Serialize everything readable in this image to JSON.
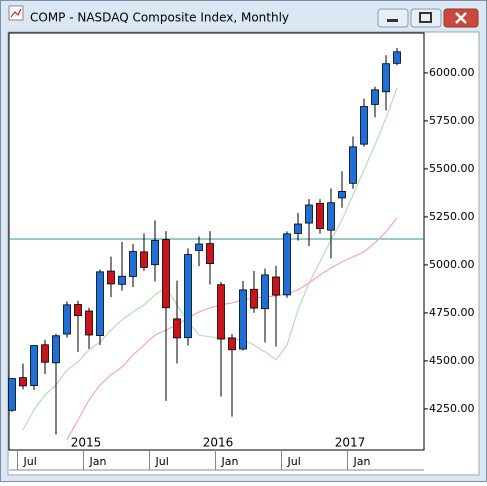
{
  "chart_data": {
    "type": "candlestick",
    "title": "COMP - NASDAQ Composite Index, Monthly",
    "categories": [
      null,
      "Jul",
      null,
      null,
      null,
      null,
      null,
      "Jan",
      null,
      null,
      null,
      null,
      null,
      "Jul",
      null,
      null,
      null,
      null,
      null,
      "Jan",
      null,
      null,
      null,
      null,
      null,
      "Jul",
      null,
      null,
      null,
      null,
      null,
      "Jan",
      null,
      null,
      null,
      null
    ],
    "years": [
      null,
      null,
      null,
      null,
      null,
      null,
      null,
      "2015",
      null,
      null,
      null,
      null,
      null,
      null,
      null,
      null,
      null,
      null,
      null,
      "2016",
      null,
      null,
      null,
      null,
      null,
      null,
      null,
      null,
      null,
      null,
      null,
      "2017",
      null,
      null,
      null,
      null
    ],
    "open": [
      4243,
      4413,
      4372,
      4584,
      4490,
      4640,
      4794,
      4760,
      4632,
      4968,
      4899,
      4940,
      5068,
      5001,
      5132,
      4719,
      4621,
      5075,
      5111,
      4897,
      4620,
      4562,
      4873,
      4772,
      4937,
      4844,
      5164,
      5218,
      5321,
      5181,
      5349,
      5425,
      5629,
      5836,
      5902,
      6050
    ],
    "high": [
      4409,
      4486,
      4580,
      4610,
      4641,
      4810,
      4814,
      4777,
      4976,
      5043,
      5120,
      5109,
      5164,
      5232,
      5176,
      4918,
      5087,
      5148,
      5176,
      4911,
      4640,
      4916,
      4969,
      4981,
      4995,
      5175,
      5271,
      5343,
      5342,
      5399,
      5487,
      5669,
      5867,
      5928,
      6092,
      6130
    ],
    "low": [
      4235,
      4352,
      4348,
      4432,
      4117,
      4621,
      4547,
      4563,
      4583,
      4832,
      4867,
      4885,
      4969,
      4914,
      4292,
      4487,
      4580,
      4994,
      4899,
      4314,
      4210,
      4554,
      4751,
      4596,
      4575,
      4829,
      5127,
      5098,
      5163,
      5034,
      5298,
      5397,
      5616,
      5769,
      5805,
      6040
    ],
    "close": [
      4408,
      4370,
      4580,
      4493,
      4631,
      4792,
      4736,
      4635,
      4964,
      4901,
      4941,
      5070,
      4987,
      5128,
      4777,
      4620,
      5054,
      5109,
      5007,
      4614,
      4558,
      4870,
      4775,
      4948,
      4843,
      5162,
      5213,
      5312,
      5189,
      5324,
      5383,
      5615,
      5825,
      5912,
      6048,
      6110
    ],
    "up_color": "#1f6fd6",
    "down_color": "#c8141c",
    "overlays": [
      {
        "color": "#b9ddb9",
        "values": [
          null,
          4141,
          4245,
          4323,
          4375,
          4453,
          4495,
          4557,
          4599,
          4661,
          4714,
          4755,
          4792,
          4844,
          4880,
          4792,
          4703,
          4635,
          4625,
          4620,
          4615,
          4609,
          4583,
          4547,
          4505,
          4583,
          4766,
          4906,
          5016,
          5130,
          5234,
          5365,
          5495,
          5625,
          5766,
          5922
        ]
      },
      {
        "color": "#f4a6c0",
        "values": [
          null,
          null,
          null,
          null,
          null,
          4089,
          4193,
          4297,
          4375,
          4427,
          4469,
          4531,
          4583,
          4635,
          4661,
          4688,
          4724,
          4755,
          4776,
          4792,
          4802,
          4818,
          4828,
          4833,
          4839,
          4849,
          4870,
          4906,
          4948,
          4984,
          5016,
          5042,
          5068,
          5115,
          5172,
          5245
        ]
      }
    ],
    "hline": 5135,
    "hline_color": "#2a9a9a",
    "ylim": [
      4036,
      6208
    ],
    "yticks": [
      {
        "value": 4250,
        "label": "4250.00"
      },
      {
        "value": 4500,
        "label": "4500.00"
      },
      {
        "value": 4750,
        "label": "4750.00"
      },
      {
        "value": 5000,
        "label": "5000.00"
      },
      {
        "value": 5250,
        "label": "5250.00"
      },
      {
        "value": 5500,
        "label": "5500.00"
      },
      {
        "value": 5750,
        "label": "5750.00"
      },
      {
        "value": 6000,
        "label": "6000.00"
      }
    ]
  }
}
